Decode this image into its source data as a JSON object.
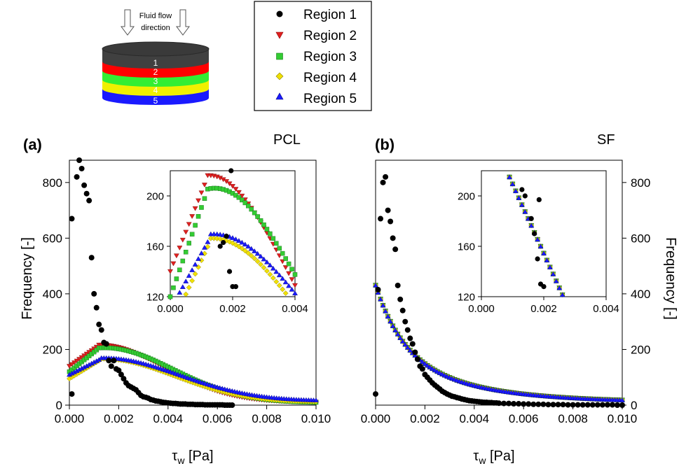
{
  "schematic": {
    "caption_line1": "Fluid flow",
    "caption_line2": "direction",
    "layers": [
      "1",
      "2",
      "3",
      "4",
      "5"
    ]
  },
  "legend": {
    "entries": [
      {
        "label": "Region 1",
        "marker": "circle",
        "color": "#000000"
      },
      {
        "label": "Region 2",
        "marker": "triangle-down",
        "color": "#e02020"
      },
      {
        "label": "Region 3",
        "marker": "square",
        "color": "#33cc33"
      },
      {
        "label": "Region 4",
        "marker": "diamond",
        "color": "#f0e000"
      },
      {
        "label": "Region 5",
        "marker": "triangle-up",
        "color": "#1a1aff"
      }
    ]
  },
  "colors": {
    "region1": "#000000",
    "region2": "#e02020",
    "region3": "#33cc33",
    "region4": "#f0e000",
    "region5": "#1a1aff",
    "layer1": "#404040"
  },
  "chart_data": [
    {
      "type": "scatter",
      "panel_label": "(a)",
      "title": "PCL",
      "xlabel_main": "τ",
      "xlabel_sub": "w",
      "xlabel_unit": " [Pa]",
      "ylabel": "Frequency [-]",
      "xlim": [
        0,
        0.01
      ],
      "ylim": [
        0,
        880
      ],
      "xticks": [
        "0.000",
        "0.002",
        "0.004",
        "0.006",
        "0.008",
        "0.010"
      ],
      "yticks": [
        "0",
        "200",
        "400",
        "600",
        "800"
      ],
      "series": [
        {
          "name": "Region 1",
          "points": [
            [
              0.0001,
              40
            ],
            [
              0.0001,
              670
            ],
            [
              0.0003,
              820
            ],
            [
              0.0004,
              880
            ],
            [
              0.0005,
              850
            ],
            [
              0.0006,
              790
            ],
            [
              0.0007,
              760
            ],
            [
              0.0008,
              735
            ],
            [
              0.0009,
              530
            ],
            [
              0.001,
              400
            ],
            [
              0.0011,
              350
            ],
            [
              0.0012,
              290
            ],
            [
              0.0013,
              270
            ],
            [
              0.0014,
              225
            ],
            [
              0.0015,
              220
            ],
            [
              0.0016,
              160
            ],
            [
              0.0017,
              140
            ],
            [
              0.0018,
              160
            ],
            [
              0.0019,
              130
            ],
            [
              0.002,
              125
            ],
            [
              0.0021,
              110
            ],
            [
              0.0022,
              95
            ],
            [
              0.0023,
              80
            ],
            [
              0.0024,
              70
            ],
            [
              0.0025,
              65
            ],
            [
              0.0026,
              60
            ],
            [
              0.0027,
              55
            ],
            [
              0.0028,
              45
            ],
            [
              0.0029,
              35
            ],
            [
              0.003,
              30
            ],
            [
              0.0031,
              28
            ],
            [
              0.0032,
              25
            ],
            [
              0.0033,
              20
            ],
            [
              0.0034,
              18
            ],
            [
              0.0035,
              15
            ],
            [
              0.0036,
              14
            ],
            [
              0.0037,
              12
            ],
            [
              0.0038,
              10
            ],
            [
              0.0039,
              9
            ],
            [
              0.004,
              8
            ],
            [
              0.0041,
              7
            ],
            [
              0.0042,
              6
            ],
            [
              0.0043,
              6
            ],
            [
              0.0044,
              5
            ],
            [
              0.0045,
              4
            ],
            [
              0.0046,
              4
            ],
            [
              0.0047,
              4
            ],
            [
              0.0048,
              3
            ],
            [
              0.0049,
              3
            ],
            [
              0.005,
              3
            ],
            [
              0.0051,
              2
            ],
            [
              0.0052,
              2
            ],
            [
              0.0053,
              2
            ],
            [
              0.0054,
              2
            ],
            [
              0.0055,
              1
            ],
            [
              0.0056,
              1
            ],
            [
              0.0057,
              1
            ],
            [
              0.0058,
              1
            ],
            [
              0.0059,
              1
            ],
            [
              0.006,
              1
            ],
            [
              0.0061,
              1
            ],
            [
              0.0062,
              1
            ],
            [
              0.0063,
              0
            ],
            [
              0.0064,
              0
            ],
            [
              0.0065,
              0
            ],
            [
              0.0066,
              0
            ]
          ]
        },
        {
          "name": "Region 2",
          "curve": "r2",
          "x_start": 0.0,
          "x_end": 0.01,
          "step": 0.0001
        },
        {
          "name": "Region 3",
          "curve": "r3",
          "x_start": 0.0,
          "x_end": 0.01,
          "step": 0.0001
        },
        {
          "name": "Region 4",
          "curve": "r4",
          "x_start": 0.0,
          "x_end": 0.01,
          "step": 0.0001
        },
        {
          "name": "Region 5",
          "curve": "r5",
          "x_start": 0.0,
          "x_end": 0.01,
          "step": 0.0001
        }
      ],
      "inset": {
        "xlim": [
          0,
          0.004
        ],
        "ylim": [
          120,
          220
        ],
        "xticks": [
          "0.000",
          "0.002",
          "0.004"
        ],
        "yticks": [
          "120",
          "160",
          "200"
        ],
        "series": [
          {
            "name": "Region 1",
            "points": [
              [
                0.0016,
                160
              ],
              [
                0.0017,
                163
              ],
              [
                0.0018,
                168
              ],
              [
                0.0019,
                140
              ],
              [
                0.002,
                128
              ],
              [
                0.0021,
                128
              ],
              [
                0.00195,
                220
              ]
            ]
          }
        ]
      }
    },
    {
      "type": "scatter",
      "panel_label": "(b)",
      "title": "SF",
      "xlabel_main": "τ",
      "xlabel_sub": "w",
      "xlabel_unit": " [Pa]",
      "ylabel": "Frequency [-]",
      "xlim": [
        0,
        0.01
      ],
      "ylim": [
        0,
        880
      ],
      "xticks": [
        "0.000",
        "0.002",
        "0.004",
        "0.006",
        "0.008",
        "0.010"
      ],
      "yticks": [
        "0",
        "200",
        "400",
        "600",
        "800"
      ],
      "series": [
        {
          "name": "Region 1",
          "points": [
            [
              0.0,
              40
            ],
            [
              0.0001,
              415
            ],
            [
              0.0002,
              670
            ],
            [
              0.0003,
              800
            ],
            [
              0.0004,
              820
            ],
            [
              0.0005,
              700
            ],
            [
              0.0006,
              660
            ],
            [
              0.0007,
              600
            ],
            [
              0.0008,
              560
            ],
            [
              0.0009,
              430
            ],
            [
              0.001,
              380
            ],
            [
              0.0011,
              340
            ],
            [
              0.0012,
              300
            ],
            [
              0.0013,
              270
            ],
            [
              0.0014,
              240
            ],
            [
              0.0015,
              220
            ],
            [
              0.0016,
              190
            ],
            [
              0.0017,
              165
            ],
            [
              0.0018,
              140
            ],
            [
              0.0019,
              130
            ],
            [
              0.002,
              110
            ],
            [
              0.0021,
              100
            ],
            [
              0.0022,
              90
            ],
            [
              0.0023,
              80
            ],
            [
              0.0024,
              72
            ],
            [
              0.0025,
              65
            ],
            [
              0.0026,
              58
            ],
            [
              0.0027,
              50
            ],
            [
              0.0028,
              45
            ],
            [
              0.0029,
              40
            ],
            [
              0.003,
              36
            ],
            [
              0.0031,
              32
            ],
            [
              0.0032,
              30
            ],
            [
              0.0033,
              27
            ],
            [
              0.0034,
              25
            ],
            [
              0.0035,
              22
            ],
            [
              0.0036,
              20
            ],
            [
              0.0037,
              18
            ],
            [
              0.0038,
              16
            ],
            [
              0.0039,
              15
            ],
            [
              0.004,
              14
            ],
            [
              0.0041,
              13
            ],
            [
              0.0042,
              12
            ],
            [
              0.0043,
              11
            ],
            [
              0.0044,
              10
            ],
            [
              0.0045,
              10
            ],
            [
              0.0046,
              9
            ],
            [
              0.0047,
              9
            ],
            [
              0.0048,
              8
            ],
            [
              0.0049,
              8
            ],
            [
              0.005,
              7
            ],
            [
              0.0052,
              6
            ],
            [
              0.0054,
              6
            ],
            [
              0.0056,
              5
            ],
            [
              0.0058,
              5
            ],
            [
              0.006,
              4
            ],
            [
              0.0062,
              4
            ],
            [
              0.0064,
              3
            ],
            [
              0.0066,
              3
            ],
            [
              0.0068,
              3
            ],
            [
              0.007,
              2
            ],
            [
              0.0072,
              2
            ],
            [
              0.0074,
              2
            ],
            [
              0.0076,
              2
            ],
            [
              0.0078,
              1
            ],
            [
              0.008,
              1
            ],
            [
              0.0082,
              1
            ],
            [
              0.0084,
              1
            ],
            [
              0.0086,
              1
            ],
            [
              0.0088,
              1
            ],
            [
              0.009,
              1
            ],
            [
              0.0092,
              1
            ],
            [
              0.0094,
              1
            ],
            [
              0.0096,
              1
            ],
            [
              0.0098,
              0
            ],
            [
              0.01,
              0
            ]
          ]
        },
        {
          "name": "Region 2",
          "curve": "sf",
          "x_start": 0.0,
          "x_end": 0.01,
          "step": 0.0001
        },
        {
          "name": "Region 3",
          "curve": "sf",
          "x_start": 0.0,
          "x_end": 0.01,
          "step": 0.0001
        },
        {
          "name": "Region 4",
          "curve": "sf",
          "x_start": 0.0,
          "x_end": 0.01,
          "step": 0.0001
        },
        {
          "name": "Region 5",
          "curve": "sf",
          "x_start": 0.0,
          "x_end": 0.01,
          "step": 0.0001
        }
      ],
      "inset": {
        "xlim": [
          0,
          0.004
        ],
        "ylim": [
          120,
          220
        ],
        "xticks": [
          "0.000",
          "0.002",
          "0.004"
        ],
        "yticks": [
          "120",
          "160",
          "200"
        ],
        "series": [
          {
            "name": "Region 1",
            "points": [
              [
                0.0013,
                205
              ],
              [
                0.0014,
                200
              ],
              [
                0.0016,
                182
              ],
              [
                0.0017,
                170
              ],
              [
                0.0018,
                150
              ],
              [
                0.0019,
                130
              ],
              [
                0.002,
                128
              ],
              [
                0.00185,
                197
              ]
            ]
          }
        ]
      }
    }
  ]
}
